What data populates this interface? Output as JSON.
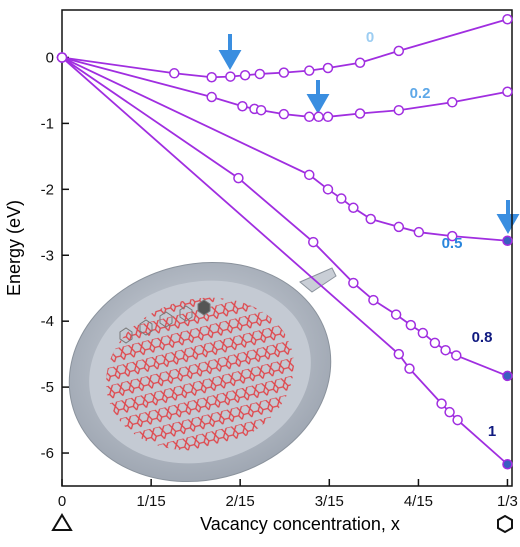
{
  "chart_data": {
    "type": "line",
    "y_label": "Energy (eV)",
    "x_label": "Vacancy concentration, x",
    "xlim": [
      0,
      0.3367
    ],
    "ylim": [
      -6.5,
      0.72
    ],
    "xticks": [
      0,
      {
        "value": 0.0667,
        "label": "1/15"
      },
      {
        "value": 0.1333,
        "label": "2/15"
      },
      {
        "value": 0.2,
        "label": "3/15"
      },
      {
        "value": 0.2667,
        "label": "4/15"
      },
      {
        "value": 0.3333,
        "label": "1/3"
      }
    ],
    "yticks": [
      0,
      -1,
      -2,
      -3,
      -4,
      -5,
      -6
    ],
    "color": "#a02ee0",
    "series": [
      {
        "name": "0",
        "label_color": "#9ccdf2",
        "x": [
          0,
          0.084,
          0.112,
          0.126,
          0.137,
          0.148,
          0.166,
          0.185,
          0.199,
          0.223,
          0.252,
          0.3333
        ],
        "values": [
          0,
          -0.24,
          -0.3,
          -0.29,
          -0.27,
          -0.25,
          -0.23,
          -0.2,
          -0.16,
          -0.08,
          0.1,
          0.58
        ]
      },
      {
        "name": "0.2",
        "label_color": "#5ea8e8",
        "x": [
          0,
          0.112,
          0.135,
          0.144,
          0.149,
          0.166,
          0.185,
          0.192,
          0.199,
          0.223,
          0.252,
          0.292,
          0.3333
        ],
        "values": [
          0,
          -0.6,
          -0.74,
          -0.78,
          -0.8,
          -0.86,
          -0.9,
          -0.9,
          -0.9,
          -0.85,
          -0.8,
          -0.68,
          -0.52
        ]
      },
      {
        "name": "0.5",
        "label_color": "#2a86dc",
        "end_fill": "#3a5fc0",
        "x": [
          0,
          0.185,
          0.199,
          0.209,
          0.218,
          0.231,
          0.252,
          0.267,
          0.292,
          0.3333
        ],
        "values": [
          0,
          -1.78,
          -2.0,
          -2.14,
          -2.28,
          -2.45,
          -2.57,
          -2.65,
          -2.71,
          -2.78
        ]
      },
      {
        "name": "0.8",
        "label_color": "#101a80",
        "end_fill": "#3a5fc0",
        "x": [
          0,
          0.132,
          0.188,
          0.218,
          0.233,
          0.25,
          0.261,
          0.27,
          0.279,
          0.287,
          0.295,
          0.3333
        ],
        "values": [
          0,
          -1.83,
          -2.8,
          -3.42,
          -3.68,
          -3.9,
          -4.06,
          -4.18,
          -4.33,
          -4.44,
          -4.52,
          -4.83
        ]
      },
      {
        "name": "1",
        "label_color": "#101a80",
        "end_fill": "#3a5fc0",
        "x": [
          0,
          0.252,
          0.26,
          0.284,
          0.29,
          0.296,
          0.3333
        ],
        "values": [
          0,
          -4.5,
          -4.72,
          -5.25,
          -5.38,
          -5.5,
          -6.17
        ]
      }
    ]
  }
}
